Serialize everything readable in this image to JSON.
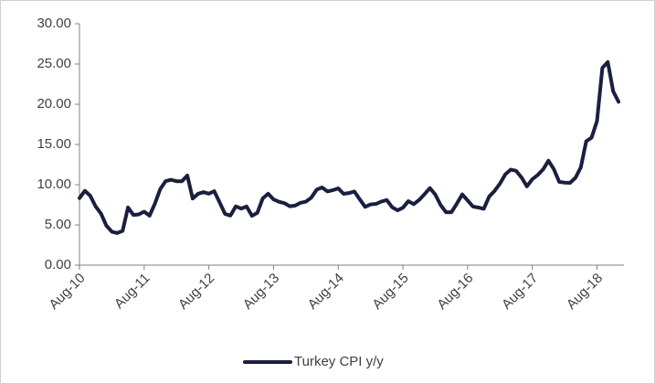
{
  "chart_data": {
    "type": "line",
    "categories": [
      "Aug-10",
      null,
      null,
      null,
      null,
      null,
      null,
      null,
      null,
      null,
      null,
      null,
      "Aug-11",
      null,
      null,
      null,
      null,
      null,
      null,
      null,
      null,
      null,
      null,
      null,
      "Aug-12",
      null,
      null,
      null,
      null,
      null,
      null,
      null,
      null,
      null,
      null,
      null,
      "Aug-13",
      null,
      null,
      null,
      null,
      null,
      null,
      null,
      null,
      null,
      null,
      null,
      "Aug-14",
      null,
      null,
      null,
      null,
      null,
      null,
      null,
      null,
      null,
      null,
      null,
      "Aug-15",
      null,
      null,
      null,
      null,
      null,
      null,
      null,
      null,
      null,
      null,
      null,
      "Aug-16",
      null,
      null,
      null,
      null,
      null,
      null,
      null,
      null,
      null,
      null,
      null,
      "Aug-17",
      null,
      null,
      null,
      null,
      null,
      null,
      null,
      null,
      null,
      null,
      null,
      "Aug-18",
      null,
      null,
      null,
      null
    ],
    "series": [
      {
        "name": "Turkey CPI y/y",
        "color": "#1b1f3f",
        "values": [
          8.33,
          9.24,
          8.62,
          7.29,
          6.4,
          4.9,
          4.16,
          3.99,
          4.26,
          7.17,
          6.24,
          6.31,
          6.65,
          6.15,
          7.66,
          9.48,
          10.45,
          10.61,
          10.43,
          10.43,
          11.14,
          8.28,
          8.87,
          9.07,
          8.88,
          9.19,
          7.8,
          6.37,
          6.16,
          7.31,
          7.03,
          7.29,
          6.13,
          6.51,
          8.3,
          8.88,
          8.17,
          7.88,
          7.71,
          7.32,
          7.4,
          7.75,
          7.89,
          8.39,
          9.38,
          9.66,
          9.16,
          9.32,
          9.54,
          8.86,
          8.96,
          9.15,
          8.17,
          7.24,
          7.55,
          7.61,
          7.91,
          8.09,
          7.2,
          6.81,
          7.14,
          7.95,
          7.58,
          8.1,
          8.81,
          9.58,
          8.78,
          7.46,
          6.57,
          6.58,
          7.64,
          8.79,
          8.05,
          7.28,
          7.16,
          7.0,
          8.53,
          9.22,
          10.13,
          11.29,
          11.87,
          11.72,
          10.9,
          9.79,
          10.68,
          11.2,
          11.9,
          12.98,
          11.92,
          10.35,
          10.26,
          10.23,
          10.85,
          12.15,
          15.39,
          15.85,
          17.9,
          24.52,
          25.24,
          21.62,
          20.3
        ]
      }
    ],
    "ylim": [
      0,
      30
    ],
    "yticks": [
      {
        "value": 0,
        "label": "0.00"
      },
      {
        "value": 5,
        "label": "5.00"
      },
      {
        "value": 10,
        "label": "10.00"
      },
      {
        "value": 15,
        "label": "15.00"
      },
      {
        "value": 20,
        "label": "20.00"
      },
      {
        "value": 25,
        "label": "25.00"
      },
      {
        "value": 30,
        "label": "30.00"
      }
    ],
    "grid": false,
    "legend": "bottom"
  }
}
